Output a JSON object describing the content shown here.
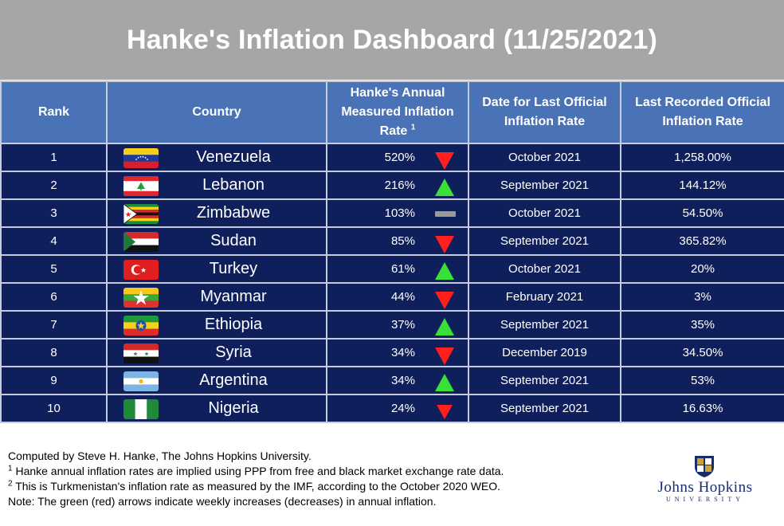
{
  "title": "Hanke's Inflation Dashboard (11/25/2021)",
  "headers": {
    "rank": "Rank",
    "country": "Country",
    "hanke_line1": "Hanke's Annual",
    "hanke_line2": "Measured Inflation",
    "hanke_line3": "Rate",
    "hanke_sup": "1",
    "date_line1": "Date for Last Official",
    "date_line2": "Inflation Rate",
    "official_line1": "Last Recorded Official",
    "official_line2": "Inflation Rate"
  },
  "rows": [
    {
      "rank": "1",
      "country": "Venezuela",
      "hanke_rate": "520%",
      "trend": "down",
      "date": "October 2021",
      "official_rate": "1,258.00%"
    },
    {
      "rank": "2",
      "country": "Lebanon",
      "hanke_rate": "216%",
      "trend": "up",
      "date": "September 2021",
      "official_rate": "144.12%"
    },
    {
      "rank": "3",
      "country": "Zimbabwe",
      "hanke_rate": "103%",
      "trend": "flat",
      "date": "October 2021",
      "official_rate": "54.50%"
    },
    {
      "rank": "4",
      "country": "Sudan",
      "hanke_rate": "85%",
      "trend": "down",
      "date": "September 2021",
      "official_rate": "365.82%"
    },
    {
      "rank": "5",
      "country": "Turkey",
      "hanke_rate": "61%",
      "trend": "up",
      "date": "October 2021",
      "official_rate": "20%"
    },
    {
      "rank": "6",
      "country": "Myanmar",
      "hanke_rate": "44%",
      "trend": "down",
      "date": "February 2021",
      "official_rate": "3%"
    },
    {
      "rank": "7",
      "country": "Ethiopia",
      "hanke_rate": "37%",
      "trend": "up",
      "date": "September 2021",
      "official_rate": "35%"
    },
    {
      "rank": "8",
      "country": "Syria",
      "hanke_rate": "34%",
      "trend": "down",
      "date": "December 2019",
      "official_rate": "34.50%"
    },
    {
      "rank": "9",
      "country": "Argentina",
      "hanke_rate": "34%",
      "trend": "up",
      "date": "September 2021",
      "official_rate": "53%"
    },
    {
      "rank": "10",
      "country": "Nigeria",
      "hanke_rate": "24%",
      "trend": "down",
      "date": "September 2021",
      "official_rate": "16.63%"
    }
  ],
  "footnotes": {
    "computed_by": "Computed by Steve H. Hanke, The Johns Hopkins University.",
    "note1_sup": "1",
    "note1": " Hanke annual inflation rates are implied using PPP from free and black market exchange rate data.",
    "note2_sup": "2",
    "note2": " This is Turkmenistan's inflation rate as measured by the IMF, according to the October 2020 WEO.",
    "note3": "Note: The green (red) arrows indicate weekly increases (decreases) in annual inflation."
  },
  "logo": {
    "name": "Johns Hopkins",
    "sub": "UNIVERSITY"
  },
  "colors": {
    "title_bar": "#a6a6a6",
    "header_bg": "#4a72b6",
    "row_bg": "#0e1f5b",
    "arrow_up": "#38e038",
    "arrow_down": "#ff1f1f",
    "arrow_flat": "#9a9a9a"
  }
}
